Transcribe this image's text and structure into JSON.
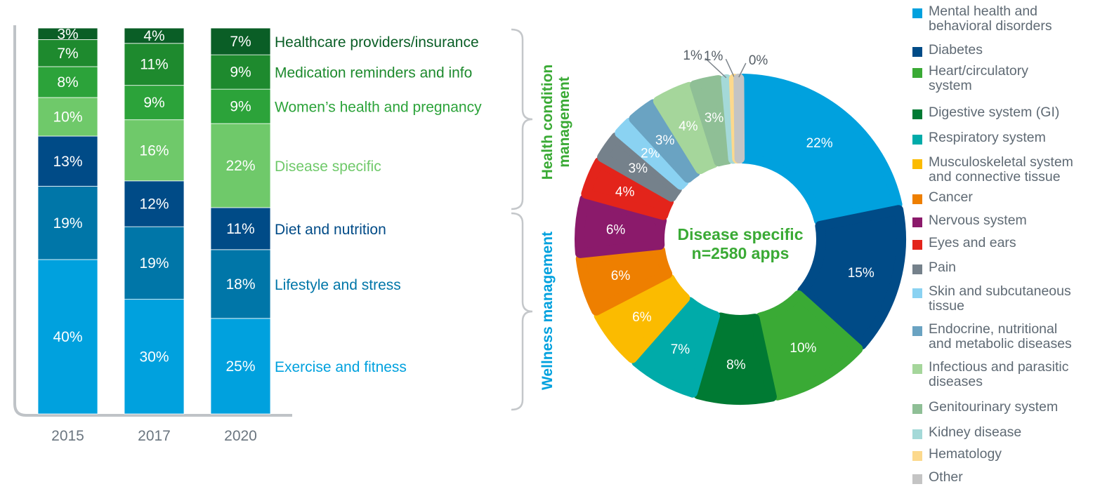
{
  "chart_data": [
    {
      "type": "bar",
      "stacked": true,
      "categories": [
        "2015",
        "2017",
        "2020"
      ],
      "series": [
        {
          "name": "Exercise and fitness",
          "color": "#00a1de",
          "label_color": "#00a1de",
          "values": [
            40,
            30,
            25
          ]
        },
        {
          "name": "Lifestyle and stress",
          "color": "#0076a8",
          "label_color": "#0076a8",
          "values": [
            19,
            19,
            18
          ]
        },
        {
          "name": "Diet and nutrition",
          "color": "#004b87",
          "label_color": "#004b87",
          "values": [
            13,
            12,
            11
          ]
        },
        {
          "name": "Disease specific",
          "color": "#6fc96a",
          "label_color": "#6fc96a",
          "values": [
            10,
            16,
            22
          ]
        },
        {
          "name": "Women’s health and pregnancy",
          "color": "#2ca33a",
          "label_color": "#2ca33a",
          "values": [
            8,
            9,
            9
          ]
        },
        {
          "name": "Medication reminders and info",
          "color": "#1e8a2e",
          "label_color": "#1e8a2e",
          "values": [
            7,
            11,
            9
          ]
        },
        {
          "name": "Healthcare providers/insurance",
          "color": "#0a5e26",
          "label_color": "#0a5e26",
          "values": [
            3,
            4,
            7
          ]
        }
      ],
      "value_suffix": "%",
      "groups": [
        {
          "label": "Health condition management",
          "color": "#3aaa35",
          "series": [
            "Disease specific",
            "Women’s health and pregnancy",
            "Medication reminders and info",
            "Healthcare providers/insurance"
          ]
        },
        {
          "label": "Wellness management",
          "color": "#00a1de",
          "series": [
            "Exercise and fitness",
            "Lifestyle and stress",
            "Diet and nutrition"
          ]
        }
      ]
    },
    {
      "type": "pie",
      "donut": true,
      "center_label": [
        "Disease specific",
        "n=2580 apps"
      ],
      "center_color": "#3aaa35",
      "slices": [
        {
          "label": "Mental health and\nbehavioral disorders",
          "value": 22,
          "display": "22%",
          "color": "#00a1de"
        },
        {
          "label": "Diabetes",
          "value": 15,
          "display": "15%",
          "color": "#004b87"
        },
        {
          "label": "Heart/circulatory\nsystem",
          "value": 10,
          "display": "10%",
          "color": "#3aaa35"
        },
        {
          "label": "Digestive system (GI)",
          "value": 8,
          "display": "8%",
          "color": "#007a33"
        },
        {
          "label": "Respiratory system",
          "value": 7,
          "display": "7%",
          "color": "#00aba9"
        },
        {
          "label": "Musculoskeletal system\nand connective tissue",
          "value": 6,
          "display": "6%",
          "color": "#fbbb00"
        },
        {
          "label": "Cancer",
          "value": 6,
          "display": "6%",
          "color": "#ee7f00"
        },
        {
          "label": "Nervous system",
          "value": 6,
          "display": "6%",
          "color": "#8b1a6b"
        },
        {
          "label": "Eyes and ears",
          "value": 4,
          "display": "4%",
          "color": "#e3241b"
        },
        {
          "label": "Pain",
          "value": 3,
          "display": "3%",
          "color": "#75818b"
        },
        {
          "label": "Skin and subcutaneous\ntissue",
          "value": 2,
          "display": "2%",
          "color": "#8ad2f2"
        },
        {
          "label": "Endocrine, nutritional\nand metabolic diseases",
          "value": 3,
          "display": "3%",
          "color": "#6aa3c2"
        },
        {
          "label": "Infectious and parasitic\ndiseases",
          "value": 4,
          "display": "4%",
          "color": "#a5d69b"
        },
        {
          "label": "Genitourinary system",
          "value": 3,
          "display": "3%",
          "color": "#8fbf96"
        },
        {
          "label": "Kidney disease",
          "value": 1,
          "display": "1%",
          "color": "#a4d9d8"
        },
        {
          "label": "Hematology",
          "value": 0.6,
          "display": "1%",
          "color": "#fcd98d"
        },
        {
          "label": "Other",
          "value": 0.3,
          "display": "0%",
          "color": "#c4c4c4"
        }
      ]
    }
  ]
}
